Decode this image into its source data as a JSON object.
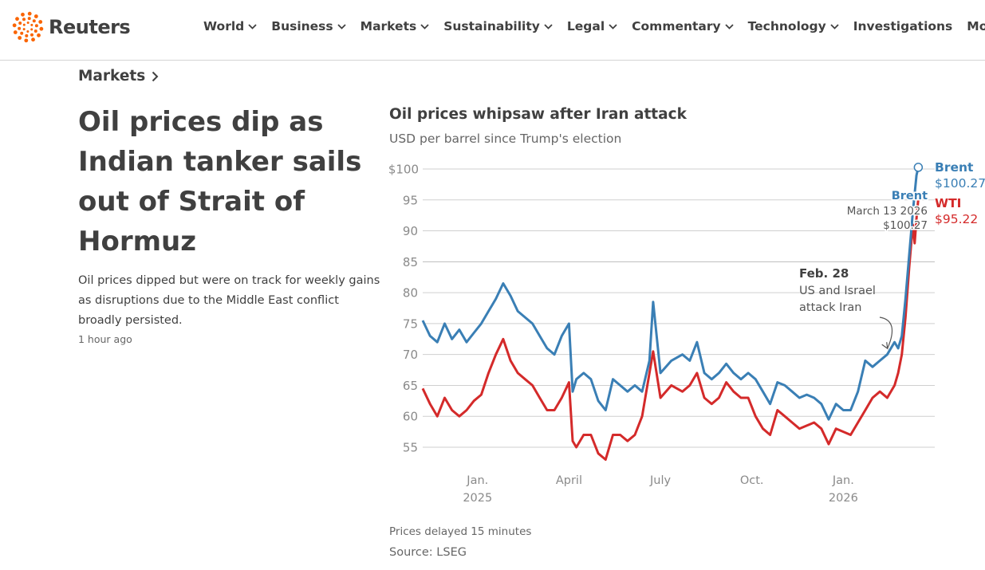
{
  "header": {
    "logo_text": "Reuters",
    "nav": [
      {
        "label": "World",
        "dropdown": true
      },
      {
        "label": "Business",
        "dropdown": true
      },
      {
        "label": "Markets",
        "dropdown": true
      },
      {
        "label": "Sustainability",
        "dropdown": true
      },
      {
        "label": "Legal",
        "dropdown": true
      },
      {
        "label": "Commentary",
        "dropdown": true
      },
      {
        "label": "Technology",
        "dropdown": true
      },
      {
        "label": "Investigations",
        "dropdown": false
      },
      {
        "label": "More",
        "dropdown": true
      }
    ]
  },
  "article": {
    "section": "Markets",
    "headline": "Oil prices dip as Indian tanker sails out of Strait of Hormuz",
    "summary": "Oil prices dipped but were on track for weekly gains as disruptions due to the Middle East conflict broadly persisted.",
    "timestamp": "1 hour ago"
  },
  "chart": {
    "note": "Prices delayed 15 minutes",
    "source": "Source: LSEG"
  },
  "colors": {
    "brent": "#3a7fb5",
    "wti": "#d42a2a",
    "text": "#404040",
    "muted": "#666666",
    "grid": "#cfcfcf",
    "logo": "#fa6400"
  },
  "chart_data": {
    "type": "line",
    "title": "Oil prices whipsaw after Iran attack",
    "subtitle": "USD per barrel since Trump's election",
    "y_unit": "USD per barrel",
    "ylim": [
      52,
      101
    ],
    "y_ticks": [
      100,
      95,
      90,
      85,
      80,
      75,
      70,
      65,
      60,
      55
    ],
    "y_tick_labels": [
      "$100",
      "95",
      "90",
      "85",
      "80",
      "75",
      "70",
      "65",
      "60",
      "55"
    ],
    "x_ticks": [
      {
        "t": 2025.0,
        "label": "Jan.",
        "sub": "2025"
      },
      {
        "t": 2025.25,
        "label": "April",
        "sub": ""
      },
      {
        "t": 2025.5,
        "label": "July",
        "sub": ""
      },
      {
        "t": 2025.75,
        "label": "Oct.",
        "sub": ""
      },
      {
        "t": 2026.0,
        "label": "Jan.",
        "sub": "2026"
      }
    ],
    "series": [
      {
        "name": "Brent",
        "last_value_label": "$100.27",
        "points": [
          [
            2024.85,
            75.5
          ],
          [
            2024.87,
            73
          ],
          [
            2024.89,
            72
          ],
          [
            2024.91,
            75
          ],
          [
            2024.93,
            72.5
          ],
          [
            2024.95,
            74
          ],
          [
            2024.97,
            72
          ],
          [
            2024.99,
            73.5
          ],
          [
            2025.01,
            75
          ],
          [
            2025.03,
            77
          ],
          [
            2025.05,
            79
          ],
          [
            2025.07,
            81.5
          ],
          [
            2025.09,
            79.5
          ],
          [
            2025.11,
            77
          ],
          [
            2025.13,
            76
          ],
          [
            2025.15,
            75
          ],
          [
            2025.17,
            73
          ],
          [
            2025.19,
            71
          ],
          [
            2025.21,
            70
          ],
          [
            2025.23,
            73
          ],
          [
            2025.25,
            75
          ],
          [
            2025.26,
            64
          ],
          [
            2025.27,
            66
          ],
          [
            2025.29,
            67
          ],
          [
            2025.31,
            66
          ],
          [
            2025.33,
            62.5
          ],
          [
            2025.35,
            61
          ],
          [
            2025.37,
            66
          ],
          [
            2025.39,
            65
          ],
          [
            2025.41,
            64
          ],
          [
            2025.43,
            65
          ],
          [
            2025.45,
            64
          ],
          [
            2025.47,
            69
          ],
          [
            2025.48,
            78.5
          ],
          [
            2025.5,
            67
          ],
          [
            2025.53,
            69
          ],
          [
            2025.56,
            70
          ],
          [
            2025.58,
            69
          ],
          [
            2025.6,
            72
          ],
          [
            2025.62,
            67
          ],
          [
            2025.64,
            66
          ],
          [
            2025.66,
            67
          ],
          [
            2025.68,
            68.5
          ],
          [
            2025.7,
            67
          ],
          [
            2025.72,
            66
          ],
          [
            2025.74,
            67
          ],
          [
            2025.76,
            66
          ],
          [
            2025.78,
            64
          ],
          [
            2025.8,
            62
          ],
          [
            2025.82,
            65.5
          ],
          [
            2025.84,
            65
          ],
          [
            2025.86,
            64
          ],
          [
            2025.88,
            63
          ],
          [
            2025.9,
            63.5
          ],
          [
            2025.92,
            63
          ],
          [
            2025.94,
            62
          ],
          [
            2025.96,
            59.5
          ],
          [
            2025.98,
            62
          ],
          [
            2026.0,
            61
          ],
          [
            2026.02,
            61
          ],
          [
            2026.04,
            64
          ],
          [
            2026.06,
            69
          ],
          [
            2026.08,
            68
          ],
          [
            2026.1,
            69
          ],
          [
            2026.12,
            70
          ],
          [
            2026.14,
            72
          ],
          [
            2026.15,
            71
          ],
          [
            2026.16,
            73
          ],
          [
            2026.17,
            79
          ],
          [
            2026.18,
            86
          ],
          [
            2026.19,
            93
          ],
          [
            2026.195,
            96
          ],
          [
            2026.2,
            99
          ],
          [
            2026.205,
            100.27
          ]
        ]
      },
      {
        "name": "WTI",
        "last_value_label": "$95.22",
        "points": [
          [
            2024.85,
            64.5
          ],
          [
            2024.87,
            62
          ],
          [
            2024.89,
            60
          ],
          [
            2024.91,
            63
          ],
          [
            2024.93,
            61
          ],
          [
            2024.95,
            60
          ],
          [
            2024.97,
            61
          ],
          [
            2024.99,
            62.5
          ],
          [
            2025.01,
            63.5
          ],
          [
            2025.03,
            67
          ],
          [
            2025.05,
            70
          ],
          [
            2025.07,
            72.5
          ],
          [
            2025.09,
            69
          ],
          [
            2025.11,
            67
          ],
          [
            2025.13,
            66
          ],
          [
            2025.15,
            65
          ],
          [
            2025.17,
            63
          ],
          [
            2025.19,
            61
          ],
          [
            2025.21,
            61
          ],
          [
            2025.23,
            63
          ],
          [
            2025.25,
            65.5
          ],
          [
            2025.26,
            56
          ],
          [
            2025.27,
            55
          ],
          [
            2025.29,
            57
          ],
          [
            2025.31,
            57
          ],
          [
            2025.33,
            54
          ],
          [
            2025.35,
            53
          ],
          [
            2025.37,
            57
          ],
          [
            2025.39,
            57
          ],
          [
            2025.41,
            56
          ],
          [
            2025.43,
            57
          ],
          [
            2025.45,
            60
          ],
          [
            2025.47,
            67
          ],
          [
            2025.48,
            70.5
          ],
          [
            2025.5,
            63
          ],
          [
            2025.53,
            65
          ],
          [
            2025.56,
            64
          ],
          [
            2025.58,
            65
          ],
          [
            2025.6,
            67
          ],
          [
            2025.62,
            63
          ],
          [
            2025.64,
            62
          ],
          [
            2025.66,
            63
          ],
          [
            2025.68,
            65.5
          ],
          [
            2025.7,
            64
          ],
          [
            2025.72,
            63
          ],
          [
            2025.74,
            63
          ],
          [
            2025.76,
            60
          ],
          [
            2025.78,
            58
          ],
          [
            2025.8,
            57
          ],
          [
            2025.82,
            61
          ],
          [
            2025.84,
            60
          ],
          [
            2025.86,
            59
          ],
          [
            2025.88,
            58
          ],
          [
            2025.9,
            58.5
          ],
          [
            2025.92,
            59
          ],
          [
            2025.94,
            58
          ],
          [
            2025.96,
            55.5
          ],
          [
            2025.98,
            58
          ],
          [
            2026.0,
            57.5
          ],
          [
            2026.02,
            57
          ],
          [
            2026.04,
            59
          ],
          [
            2026.06,
            61
          ],
          [
            2026.08,
            63
          ],
          [
            2026.1,
            64
          ],
          [
            2026.12,
            63
          ],
          [
            2026.14,
            65
          ],
          [
            2026.15,
            67
          ],
          [
            2026.16,
            70
          ],
          [
            2026.17,
            76
          ],
          [
            2026.18,
            84
          ],
          [
            2026.19,
            91
          ],
          [
            2026.195,
            88
          ],
          [
            2026.2,
            92
          ],
          [
            2026.205,
            95.22
          ]
        ]
      }
    ],
    "annotations": [
      {
        "id": "feb28",
        "title": "Feb. 28",
        "lines": [
          "US and Israel",
          "attack Iran"
        ],
        "t": 2026.16,
        "value": 72
      },
      {
        "id": "latest",
        "series": "Brent",
        "lines": [
          "Brent",
          "March 13 2026",
          "$100.27"
        ],
        "t": 2026.205,
        "value": 100.27
      }
    ]
  }
}
